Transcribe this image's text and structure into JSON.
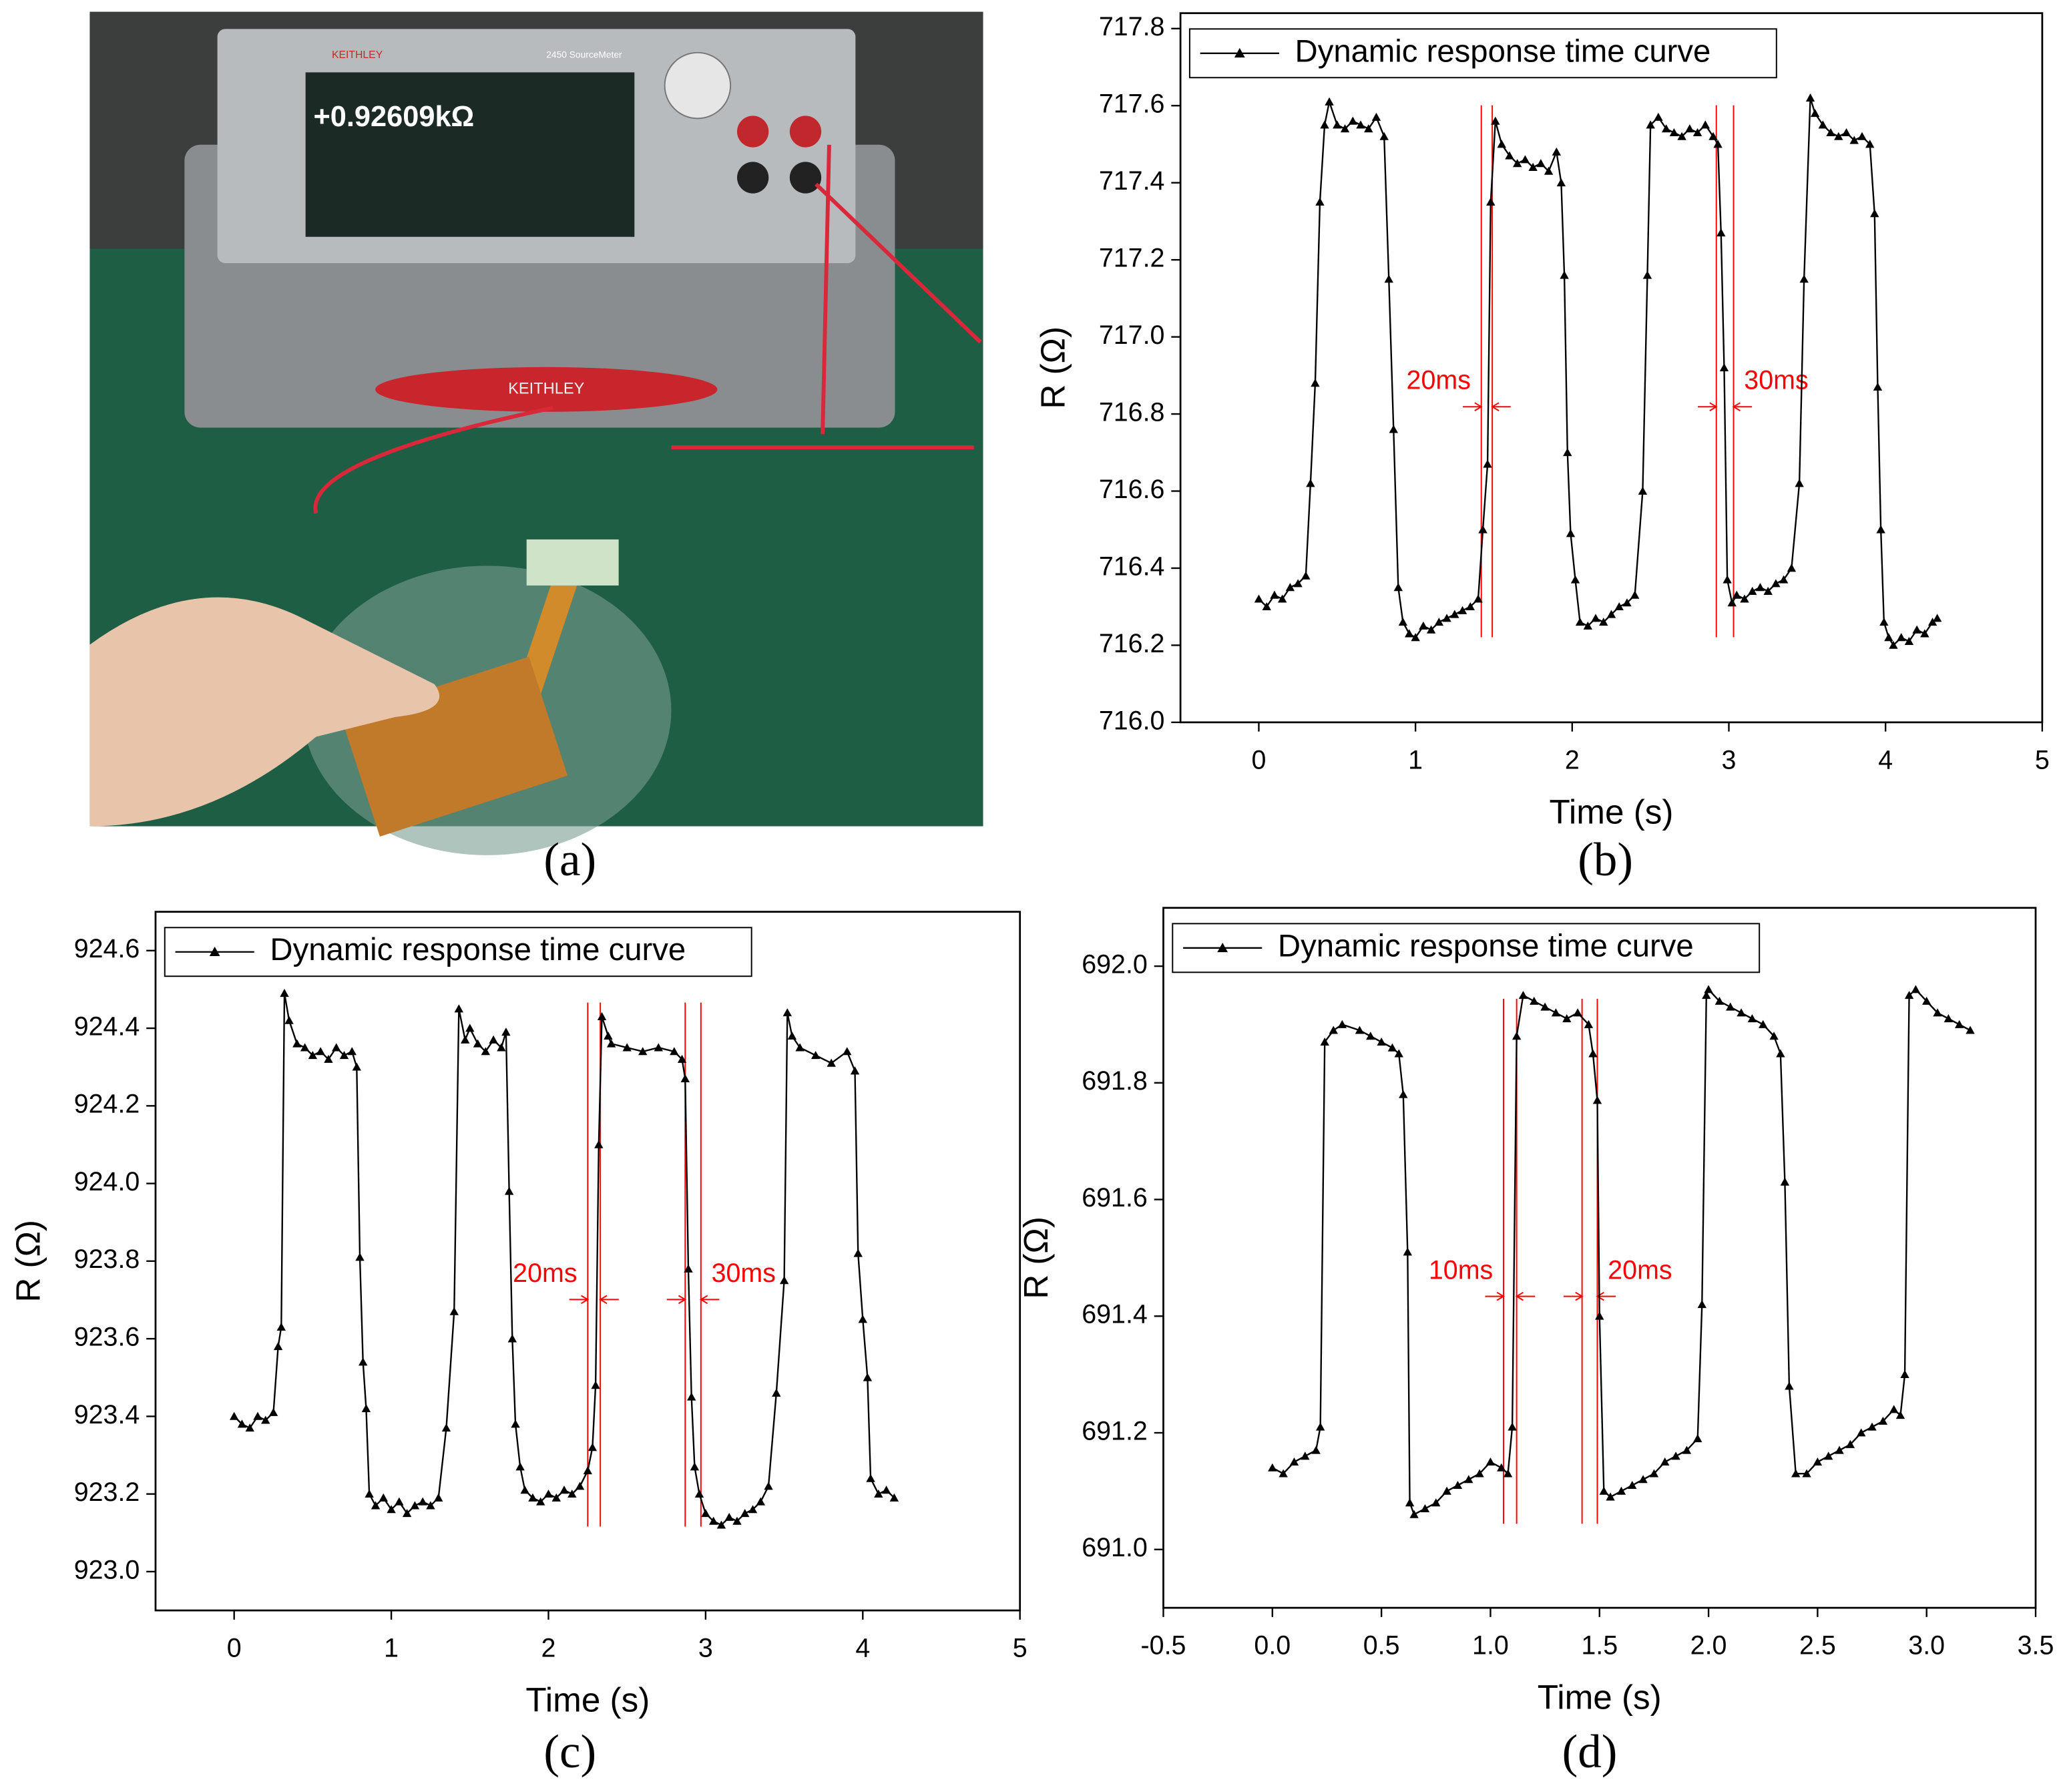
{
  "photo": {
    "caption": "(a)",
    "texts": [
      "KEITHLEY",
      "2450 SourceMeter",
      "+0.92609kΩ",
      "KEITHLEY"
    ]
  },
  "chart_data": [
    {
      "type": "line",
      "caption": "(b)",
      "xlabel": "Time (s)",
      "ylabel": "R (Ω)",
      "legend": "upper left",
      "annotation_color": "#ff0000",
      "xlim": [
        -0.5,
        5
      ],
      "xticks": [
        0,
        1,
        2,
        3,
        4,
        5
      ],
      "ylim": [
        716,
        717.84
      ],
      "yticks": [
        {
          "value": 716,
          "label": "716.0"
        },
        716.2,
        716.4,
        716.6,
        716.8,
        {
          "value": 717,
          "label": "717.0"
        },
        717.2,
        717.4,
        717.6,
        717.8
      ],
      "x": [
        0,
        0.05,
        0.1,
        0.15,
        0.2,
        0.25,
        0.3,
        0.33,
        0.36,
        0.39,
        0.42,
        0.45,
        0.5,
        0.55,
        0.6,
        0.65,
        0.7,
        0.75,
        0.8,
        0.83,
        0.86,
        0.89,
        0.92,
        0.96,
        1.0,
        1.05,
        1.1,
        1.15,
        1.2,
        1.25,
        1.3,
        1.35,
        1.4,
        1.43,
        1.46,
        1.48,
        1.51,
        1.55,
        1.6,
        1.65,
        1.7,
        1.75,
        1.8,
        1.85,
        1.9,
        1.93,
        1.95,
        1.97,
        1.99,
        2.02,
        2.05,
        2.1,
        2.15,
        2.2,
        2.25,
        2.3,
        2.35,
        2.4,
        2.45,
        2.48,
        2.5,
        2.55,
        2.6,
        2.65,
        2.7,
        2.75,
        2.8,
        2.85,
        2.9,
        2.93,
        2.95,
        2.97,
        2.99,
        3.02,
        3.05,
        3.1,
        3.15,
        3.2,
        3.25,
        3.3,
        3.35,
        3.4,
        3.45,
        3.48,
        3.52,
        3.55,
        3.6,
        3.65,
        3.7,
        3.75,
        3.8,
        3.85,
        3.9,
        3.93,
        3.95,
        3.97,
        3.99,
        4.02,
        4.05,
        4.1,
        4.15,
        4.2,
        4.25,
        4.3,
        4.33
      ],
      "series": [
        {
          "name": "Dynamic response time curve",
          "color": "#000000",
          "values": [
            716.32,
            716.3,
            716.33,
            716.32,
            716.35,
            716.36,
            716.38,
            716.62,
            716.88,
            717.35,
            717.55,
            717.61,
            717.55,
            717.54,
            717.56,
            717.55,
            717.54,
            717.57,
            717.52,
            717.15,
            716.76,
            716.35,
            716.26,
            716.23,
            716.22,
            716.25,
            716.24,
            716.26,
            716.27,
            716.28,
            716.29,
            716.3,
            716.32,
            716.5,
            716.67,
            717.35,
            717.56,
            717.5,
            717.47,
            717.45,
            717.46,
            717.44,
            717.45,
            717.43,
            717.48,
            717.4,
            717.16,
            716.7,
            716.49,
            716.37,
            716.26,
            716.25,
            716.27,
            716.26,
            716.28,
            716.3,
            716.31,
            716.33,
            716.6,
            717.16,
            717.55,
            717.57,
            717.54,
            717.53,
            717.52,
            717.54,
            717.53,
            717.55,
            717.52,
            717.5,
            717.27,
            716.92,
            716.37,
            716.31,
            716.33,
            716.32,
            716.34,
            716.35,
            716.34,
            716.36,
            716.37,
            716.4,
            716.62,
            717.15,
            717.62,
            717.58,
            717.55,
            717.53,
            717.52,
            717.53,
            717.51,
            717.52,
            717.5,
            717.32,
            716.87,
            716.5,
            716.26,
            716.22,
            716.2,
            716.22,
            716.21,
            716.24,
            716.23,
            716.26,
            716.27
          ]
        }
      ],
      "annotations": [
        {
          "text": "20ms",
          "x": [
            1.42,
            1.49
          ]
        },
        {
          "text": "30ms",
          "x": [
            2.92,
            3.03
          ]
        }
      ]
    },
    {
      "type": "line",
      "caption": "(c)",
      "xlabel": "Time (s)",
      "ylabel": "R (Ω)",
      "legend": "upper left",
      "annotation_color": "#ff0000",
      "xlim": [
        -0.5,
        5
      ],
      "xticks": [
        0,
        1,
        2,
        3,
        4,
        5
      ],
      "ylim": [
        922.9,
        924.7
      ],
      "yticks": [
        {
          "value": 923,
          "label": "923.0"
        },
        923.2,
        923.4,
        923.6,
        923.8,
        {
          "value": 924,
          "label": "924.0"
        },
        924.2,
        924.4,
        924.6
      ],
      "x": [
        0,
        0.05,
        0.1,
        0.15,
        0.2,
        0.25,
        0.28,
        0.3,
        0.32,
        0.35,
        0.4,
        0.45,
        0.5,
        0.55,
        0.6,
        0.65,
        0.7,
        0.75,
        0.78,
        0.8,
        0.82,
        0.84,
        0.86,
        0.9,
        0.95,
        1.0,
        1.05,
        1.1,
        1.15,
        1.2,
        1.25,
        1.3,
        1.35,
        1.4,
        1.43,
        1.47,
        1.5,
        1.55,
        1.6,
        1.65,
        1.7,
        1.73,
        1.75,
        1.77,
        1.79,
        1.82,
        1.85,
        1.9,
        1.95,
        2.0,
        2.05,
        2.1,
        2.15,
        2.2,
        2.25,
        2.28,
        2.3,
        2.32,
        2.34,
        2.38,
        2.4,
        2.5,
        2.6,
        2.7,
        2.8,
        2.85,
        2.87,
        2.89,
        2.91,
        2.93,
        2.96,
        3.0,
        3.05,
        3.1,
        3.15,
        3.2,
        3.25,
        3.3,
        3.35,
        3.4,
        3.45,
        3.5,
        3.52,
        3.55,
        3.6,
        3.7,
        3.8,
        3.9,
        3.95,
        3.97,
        4.0,
        4.03,
        4.05,
        4.1,
        4.15,
        4.2
      ],
      "series": [
        {
          "name": "Dynamic response time curve",
          "color": "#000000",
          "values": [
            923.4,
            923.38,
            923.37,
            923.4,
            923.39,
            923.41,
            923.58,
            923.63,
            924.49,
            924.42,
            924.36,
            924.35,
            924.33,
            924.34,
            924.32,
            924.35,
            924.33,
            924.34,
            924.3,
            923.81,
            923.54,
            923.42,
            923.2,
            923.17,
            923.19,
            923.16,
            923.18,
            923.15,
            923.17,
            923.18,
            923.17,
            923.19,
            923.37,
            923.67,
            924.45,
            924.37,
            924.4,
            924.36,
            924.34,
            924.37,
            924.35,
            924.39,
            923.98,
            923.6,
            923.38,
            923.27,
            923.21,
            923.19,
            923.18,
            923.2,
            923.19,
            923.21,
            923.2,
            923.22,
            923.26,
            923.32,
            923.48,
            924.1,
            924.43,
            924.38,
            924.36,
            924.35,
            924.34,
            924.35,
            924.34,
            924.32,
            924.27,
            923.78,
            923.45,
            923.27,
            923.2,
            923.15,
            923.13,
            923.12,
            923.14,
            923.13,
            923.15,
            923.16,
            923.18,
            923.22,
            923.46,
            923.75,
            924.44,
            924.38,
            924.35,
            924.33,
            924.31,
            924.34,
            924.29,
            923.82,
            923.65,
            923.5,
            923.24,
            923.2,
            923.21,
            923.19
          ]
        }
      ],
      "annotations": [
        {
          "text": "20ms",
          "x": [
            2.25,
            2.33
          ]
        },
        {
          "text": "30ms",
          "x": [
            2.87,
            2.97
          ]
        }
      ]
    },
    {
      "type": "line",
      "caption": "(d)",
      "xlabel": "Time (s)",
      "ylabel": "R (Ω)",
      "legend": "upper left",
      "annotation_color": "#ff0000",
      "xlim": [
        -0.5,
        3.5
      ],
      "xticks": [
        -0.5,
        {
          "value": 0,
          "label": "0.0"
        },
        0.5,
        {
          "value": 1,
          "label": "1.0"
        },
        1.5,
        {
          "value": 2,
          "label": "2.0"
        },
        2.5,
        {
          "value": 3,
          "label": "3.0"
        },
        3.5
      ],
      "ylim": [
        690.9,
        692.1
      ],
      "yticks": [
        {
          "value": 691,
          "label": "691.0"
        },
        691.2,
        691.4,
        691.6,
        691.8,
        {
          "value": 692,
          "label": "692.0"
        }
      ],
      "x": [
        0,
        0.05,
        0.1,
        0.15,
        0.2,
        0.22,
        0.24,
        0.28,
        0.32,
        0.4,
        0.45,
        0.5,
        0.55,
        0.58,
        0.6,
        0.62,
        0.63,
        0.65,
        0.7,
        0.75,
        0.8,
        0.85,
        0.9,
        0.95,
        1.0,
        1.05,
        1.08,
        1.1,
        1.12,
        1.15,
        1.2,
        1.25,
        1.3,
        1.35,
        1.4,
        1.45,
        1.47,
        1.49,
        1.5,
        1.52,
        1.55,
        1.6,
        1.65,
        1.7,
        1.75,
        1.8,
        1.85,
        1.9,
        1.95,
        1.97,
        1.99,
        2.0,
        2.05,
        2.1,
        2.15,
        2.2,
        2.25,
        2.3,
        2.33,
        2.35,
        2.37,
        2.4,
        2.45,
        2.5,
        2.55,
        2.6,
        2.65,
        2.7,
        2.75,
        2.8,
        2.85,
        2.88,
        2.9,
        2.92,
        2.95,
        3.0,
        3.05,
        3.1,
        3.15,
        3.2
      ],
      "series": [
        {
          "name": "Dynamic response time curve",
          "color": "#000000",
          "values": [
            691.14,
            691.13,
            691.15,
            691.16,
            691.17,
            691.21,
            691.87,
            691.89,
            691.9,
            691.89,
            691.88,
            691.87,
            691.86,
            691.85,
            691.78,
            691.51,
            691.08,
            691.06,
            691.07,
            691.08,
            691.1,
            691.11,
            691.12,
            691.13,
            691.15,
            691.14,
            691.13,
            691.21,
            691.88,
            691.95,
            691.94,
            691.93,
            691.92,
            691.91,
            691.92,
            691.9,
            691.85,
            691.77,
            691.4,
            691.1,
            691.09,
            691.1,
            691.11,
            691.12,
            691.13,
            691.15,
            691.16,
            691.17,
            691.19,
            691.42,
            691.95,
            691.96,
            691.94,
            691.93,
            691.92,
            691.91,
            691.9,
            691.88,
            691.85,
            691.63,
            691.28,
            691.13,
            691.13,
            691.15,
            691.16,
            691.17,
            691.18,
            691.2,
            691.21,
            691.22,
            691.24,
            691.23,
            691.3,
            691.95,
            691.96,
            691.94,
            691.92,
            691.91,
            691.9,
            691.89
          ]
        }
      ],
      "annotations": [
        {
          "text": "10ms",
          "x": [
            1.06,
            1.12
          ]
        },
        {
          "text": "20ms",
          "x": [
            1.42,
            1.49
          ]
        }
      ]
    }
  ]
}
